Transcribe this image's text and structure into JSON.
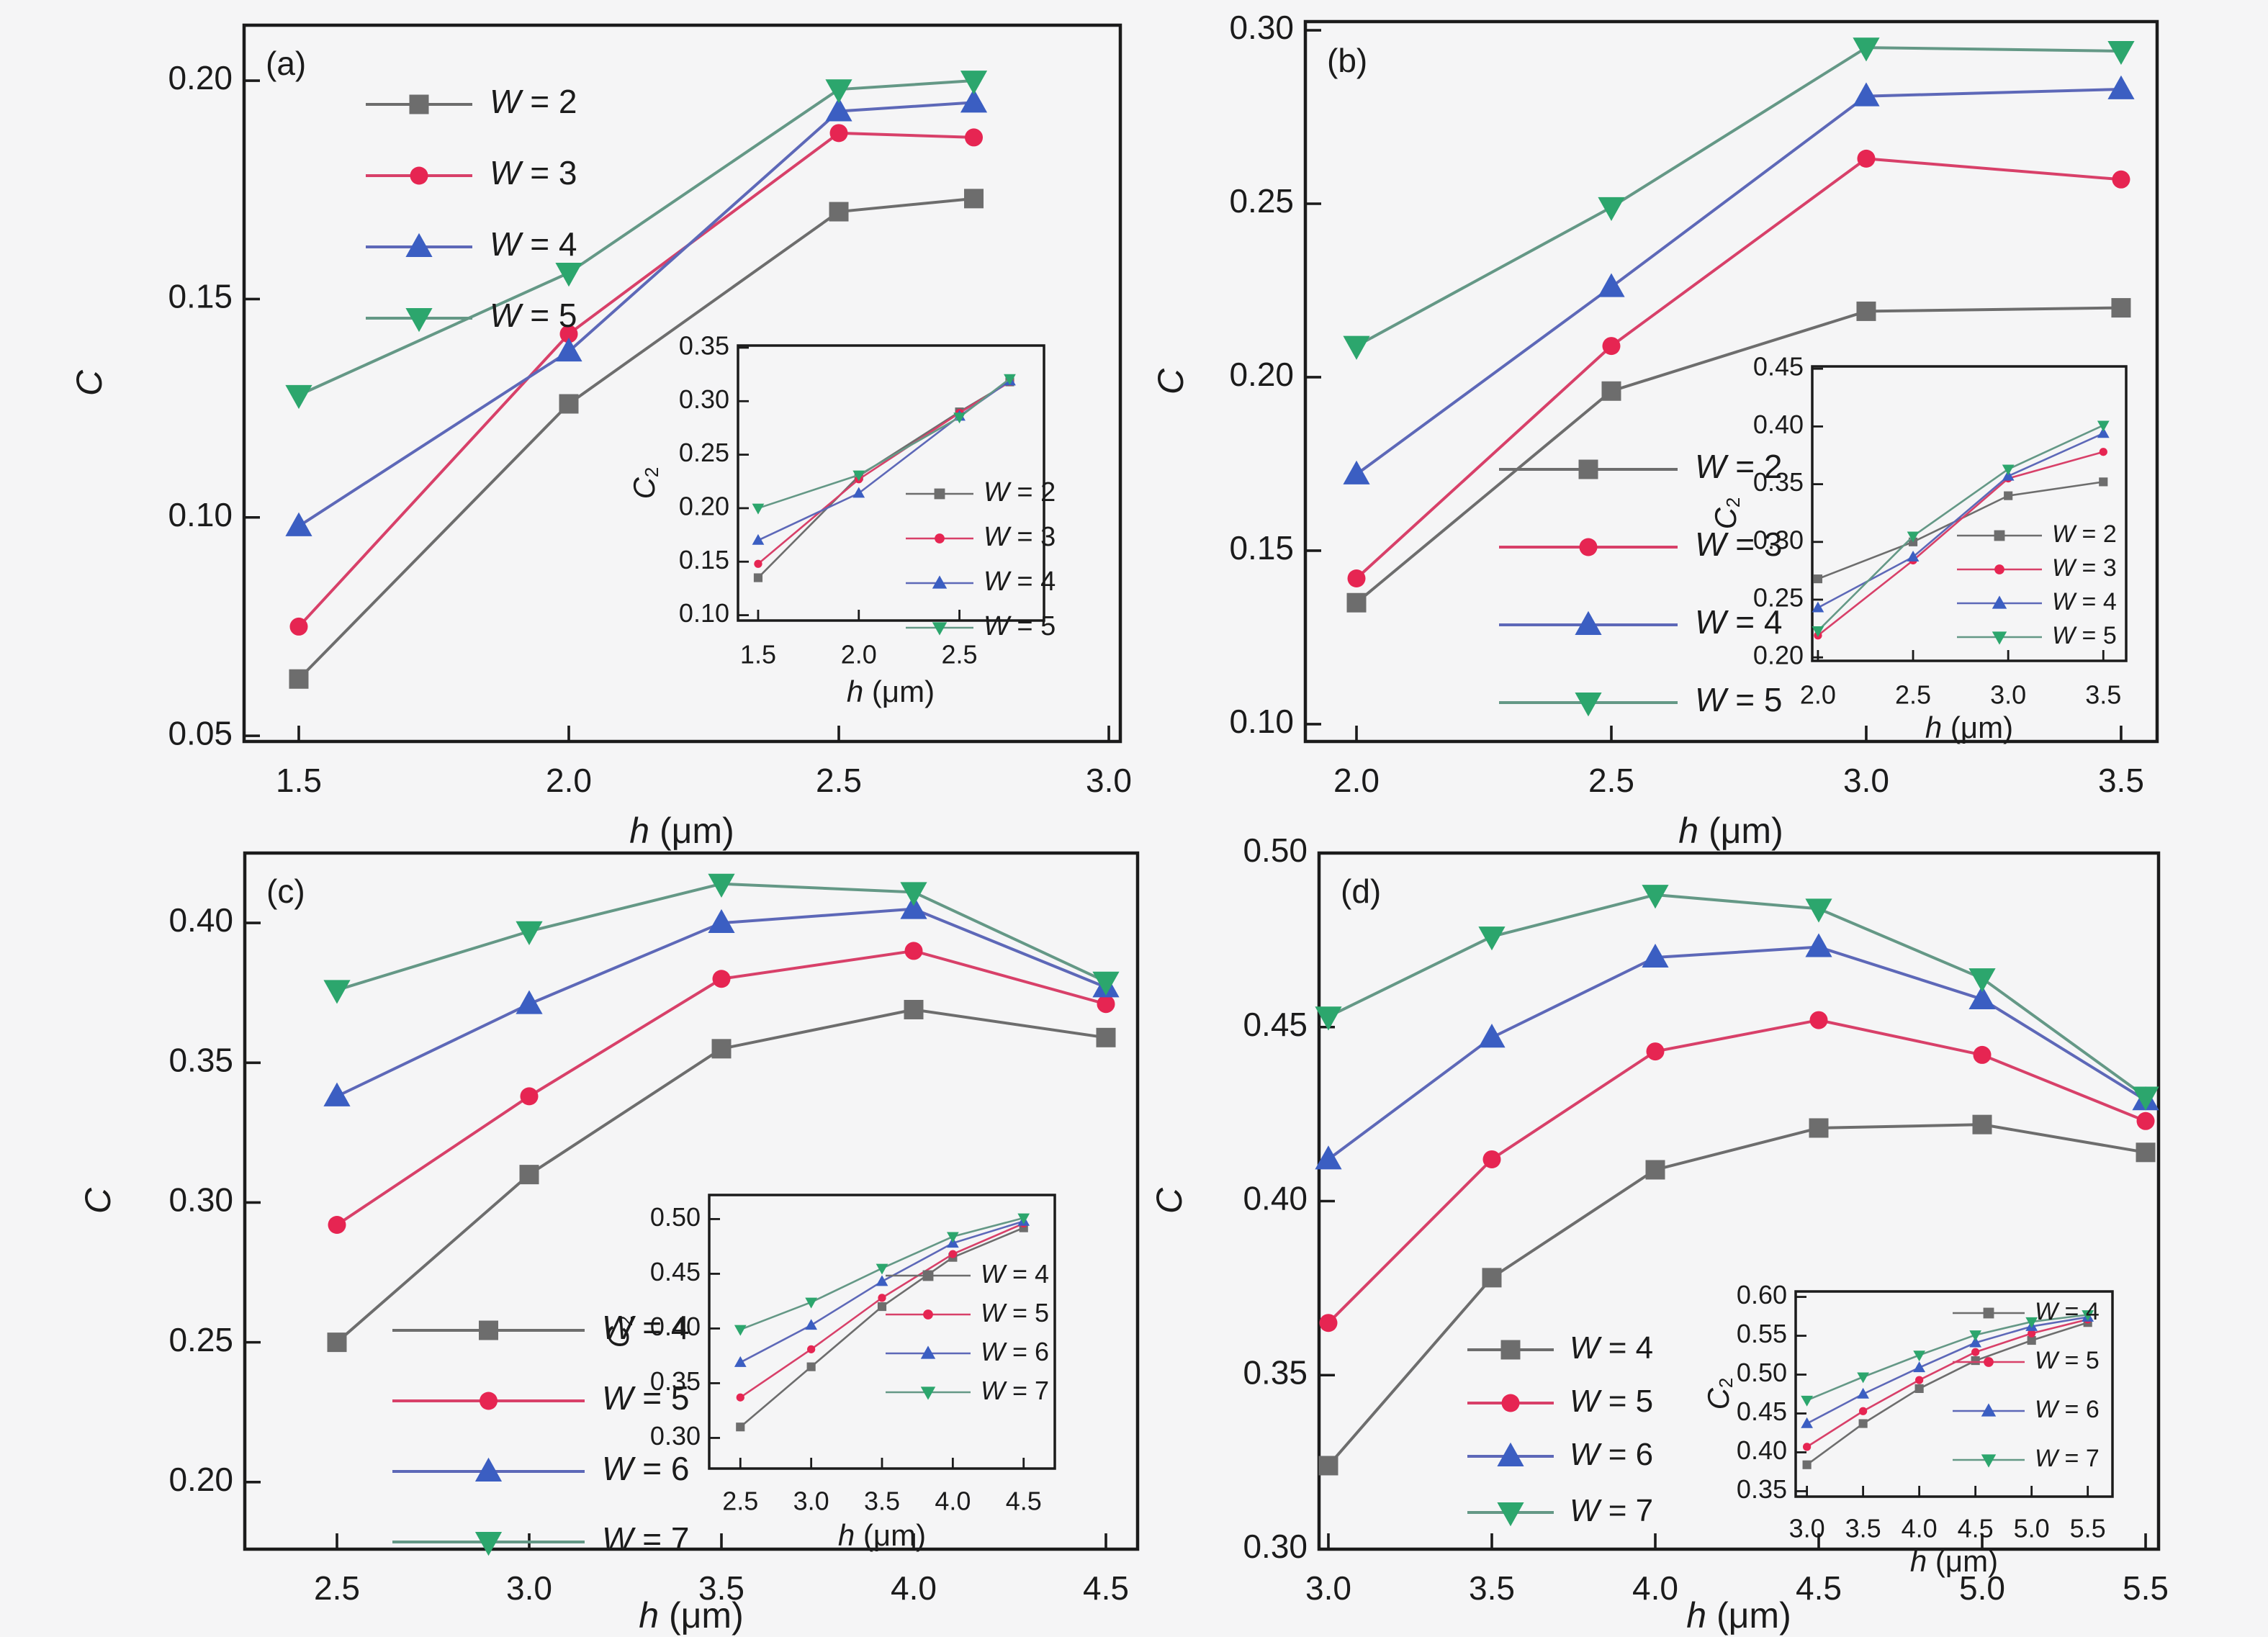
{
  "figure": {
    "background": "#f5f5f6",
    "text_color": "#1b1b1b",
    "frame_color": "#1b1b1b",
    "series_colors": {
      "gray": "#6d6d6d",
      "red_marker": "#e62552",
      "red_line": "#d84069",
      "blue_marker": "#3b5ec2",
      "blue_line": "#5d68b8",
      "green_marker": "#2ca66d",
      "green_line": "#649886"
    }
  },
  "chart_data": [
    {
      "id": "a",
      "panel_label": "(a)",
      "type": "line",
      "xlabel": "h (μm)",
      "ylabel": "C",
      "xlim": [
        1.3987,
        3.0213
      ],
      "ylim": [
        0.0487,
        0.2127
      ],
      "xticks": [
        1.5,
        2.0,
        2.5,
        3.0
      ],
      "yticks": [
        0.05,
        0.1,
        0.15,
        0.2
      ],
      "legend_position": "top-left",
      "x": [
        1.5,
        2.0,
        2.5,
        2.75
      ],
      "series": [
        {
          "name": "W = 2",
          "marker": "square",
          "color": "#6d6d6d",
          "line_color": "#6d6d6d",
          "values": [
            0.063,
            0.126,
            0.17,
            0.173
          ]
        },
        {
          "name": "W = 3",
          "marker": "circle",
          "color": "#e62552",
          "line_color": "#d84069",
          "values": [
            0.075,
            0.142,
            0.188,
            0.187
          ]
        },
        {
          "name": "W = 4",
          "marker": "triangle-up",
          "color": "#3b5ec2",
          "line_color": "#5d68b8",
          "values": [
            0.098,
            0.138,
            0.193,
            0.195
          ]
        },
        {
          "name": "W = 5",
          "marker": "triangle-down",
          "color": "#2ca66d",
          "line_color": "#649886",
          "values": [
            0.128,
            0.156,
            0.198,
            0.2
          ]
        }
      ],
      "inset": {
        "xlabel": "h (μm)",
        "ylabel": "C₂",
        "xlim": [
          1.4,
          2.92
        ],
        "ylim": [
          0.095,
          0.352
        ],
        "xticks": [
          1.5,
          2.0,
          2.5
        ],
        "yticks": [
          0.1,
          0.15,
          0.2,
          0.25,
          0.3,
          0.35
        ],
        "legend_position": "right",
        "x": [
          1.5,
          2.0,
          2.5,
          2.75
        ],
        "series": [
          {
            "name": "W = 2",
            "marker": "square",
            "color": "#6d6d6d",
            "line_color": "#6d6d6d",
            "values": [
              0.135,
              0.23,
              0.29,
              0.318
            ]
          },
          {
            "name": "W = 3",
            "marker": "circle",
            "color": "#e62552",
            "line_color": "#d84069",
            "values": [
              0.148,
              0.227,
              0.289,
              0.318
            ]
          },
          {
            "name": "W = 4",
            "marker": "triangle-up",
            "color": "#3b5ec2",
            "line_color": "#5d68b8",
            "values": [
              0.17,
              0.214,
              0.286,
              0.319
            ]
          },
          {
            "name": "W = 5",
            "marker": "triangle-down",
            "color": "#2ca66d",
            "line_color": "#649886",
            "values": [
              0.2,
              0.231,
              0.285,
              0.321
            ]
          }
        ]
      }
    },
    {
      "id": "b",
      "panel_label": "(b)",
      "type": "line",
      "xlabel": "h (μm)",
      "ylabel": "C",
      "xlim": [
        1.8997,
        3.5707
      ],
      "ylim": [
        0.095,
        0.3025
      ],
      "xticks": [
        2.0,
        2.5,
        3.0,
        3.5
      ],
      "yticks": [
        0.1,
        0.15,
        0.2,
        0.25,
        0.3
      ],
      "legend_position": "bottom-left",
      "x": [
        2.0,
        2.5,
        3.0,
        3.5
      ],
      "series": [
        {
          "name": "W = 2",
          "marker": "square",
          "color": "#6d6d6d",
          "line_color": "#6d6d6d",
          "values": [
            0.135,
            0.196,
            0.219,
            0.22
          ]
        },
        {
          "name": "W = 3",
          "marker": "circle",
          "color": "#e62552",
          "line_color": "#d84069",
          "values": [
            0.142,
            0.209,
            0.263,
            0.257
          ]
        },
        {
          "name": "W = 4",
          "marker": "triangle-up",
          "color": "#3b5ec2",
          "line_color": "#5d68b8",
          "values": [
            0.172,
            0.226,
            0.281,
            0.283
          ]
        },
        {
          "name": "W = 5",
          "marker": "triangle-down",
          "color": "#2ca66d",
          "line_color": "#649886",
          "values": [
            0.209,
            0.249,
            0.295,
            0.294
          ]
        }
      ],
      "inset": {
        "xlabel": "h (μm)",
        "ylabel": "C₂",
        "xlim": [
          1.97,
          3.62
        ],
        "ylim": [
          0.197,
          0.452
        ],
        "xticks": [
          2.0,
          2.5,
          3.0,
          3.5
        ],
        "yticks": [
          0.2,
          0.25,
          0.3,
          0.35,
          0.4,
          0.45
        ],
        "legend_position": "right",
        "x": [
          2.0,
          2.5,
          3.0,
          3.5
        ],
        "series": [
          {
            "name": "W = 2",
            "marker": "square",
            "color": "#6d6d6d",
            "line_color": "#6d6d6d",
            "values": [
              0.268,
              0.3,
              0.34,
              0.352
            ]
          },
          {
            "name": "W = 3",
            "marker": "circle",
            "color": "#e62552",
            "line_color": "#d84069",
            "values": [
              0.219,
              0.284,
              0.355,
              0.378
            ]
          },
          {
            "name": "W = 4",
            "marker": "triangle-up",
            "color": "#3b5ec2",
            "line_color": "#5d68b8",
            "values": [
              0.243,
              0.287,
              0.357,
              0.394
            ]
          },
          {
            "name": "W = 5",
            "marker": "triangle-down",
            "color": "#2ca66d",
            "line_color": "#649886",
            "values": [
              0.223,
              0.305,
              0.363,
              0.401
            ]
          }
        ]
      }
    },
    {
      "id": "c",
      "panel_label": "(c)",
      "type": "line",
      "xlabel": "h (μm)",
      "ylabel": "C",
      "xlim": [
        2.2603,
        4.5824
      ],
      "ylim": [
        0.176,
        0.425
      ],
      "xticks": [
        2.5,
        3.0,
        3.5,
        4.0,
        4.5
      ],
      "yticks": [
        0.2,
        0.25,
        0.3,
        0.35,
        0.4
      ],
      "legend_position": "bottom-left",
      "x": [
        2.5,
        3.0,
        3.5,
        4.0,
        4.5
      ],
      "series": [
        {
          "name": "W = 4",
          "marker": "square",
          "color": "#6d6d6d",
          "line_color": "#6d6d6d",
          "values": [
            0.25,
            0.31,
            0.355,
            0.369,
            0.359
          ]
        },
        {
          "name": "W = 5",
          "marker": "circle",
          "color": "#e62552",
          "line_color": "#d84069",
          "values": [
            0.292,
            0.338,
            0.38,
            0.39,
            0.371
          ]
        },
        {
          "name": "W = 6",
          "marker": "triangle-up",
          "color": "#3b5ec2",
          "line_color": "#5d68b8",
          "values": [
            0.338,
            0.371,
            0.4,
            0.405,
            0.377
          ]
        },
        {
          "name": "W = 7",
          "marker": "triangle-down",
          "color": "#2ca66d",
          "line_color": "#649886",
          "values": [
            0.376,
            0.397,
            0.414,
            0.411,
            0.379
          ]
        }
      ],
      "inset": {
        "xlabel": "h (μm)",
        "ylabel": "C₂",
        "xlim": [
          2.28,
          4.72
        ],
        "ylim": [
          0.272,
          0.522
        ],
        "xticks": [
          2.5,
          3.0,
          3.5,
          4.0,
          4.5
        ],
        "yticks": [
          0.3,
          0.35,
          0.4,
          0.45,
          0.5
        ],
        "legend_position": "right",
        "x": [
          2.5,
          3.0,
          3.5,
          4.0,
          4.5
        ],
        "series": [
          {
            "name": "W = 4",
            "marker": "square",
            "color": "#6d6d6d",
            "line_color": "#6d6d6d",
            "values": [
              0.31,
              0.365,
              0.42,
              0.465,
              0.492
            ]
          },
          {
            "name": "W = 5",
            "marker": "circle",
            "color": "#e62552",
            "line_color": "#d84069",
            "values": [
              0.337,
              0.381,
              0.428,
              0.468,
              0.496
            ]
          },
          {
            "name": "W = 6",
            "marker": "triangle-up",
            "color": "#3b5ec2",
            "line_color": "#5d68b8",
            "values": [
              0.369,
              0.403,
              0.443,
              0.478,
              0.498
            ]
          },
          {
            "name": "W = 7",
            "marker": "triangle-down",
            "color": "#2ca66d",
            "line_color": "#649886",
            "values": [
              0.399,
              0.424,
              0.455,
              0.484,
              0.501
            ]
          }
        ]
      }
    },
    {
      "id": "d",
      "panel_label": "(d)",
      "type": "line",
      "xlabel": "h (μm)",
      "ylabel": "C",
      "xlim": [
        2.9714,
        5.5396
      ],
      "ylim": [
        0.3,
        0.5
      ],
      "xticks": [
        3.0,
        3.5,
        4.0,
        4.5,
        5.0,
        5.5
      ],
      "yticks": [
        0.3,
        0.35,
        0.4,
        0.45,
        0.5
      ],
      "legend_position": "bottom-left",
      "x": [
        3.0,
        3.5,
        4.0,
        4.5,
        5.0,
        5.5
      ],
      "series": [
        {
          "name": "W = 4",
          "marker": "square",
          "color": "#6d6d6d",
          "line_color": "#6d6d6d",
          "values": [
            0.324,
            0.378,
            0.409,
            0.421,
            0.422,
            0.414
          ]
        },
        {
          "name": "W = 5",
          "marker": "circle",
          "color": "#e62552",
          "line_color": "#d84069",
          "values": [
            0.365,
            0.412,
            0.443,
            0.452,
            0.442,
            0.423
          ]
        },
        {
          "name": "W = 6",
          "marker": "triangle-up",
          "color": "#3b5ec2",
          "line_color": "#5d68b8",
          "values": [
            0.412,
            0.447,
            0.47,
            0.473,
            0.458,
            0.429
          ]
        },
        {
          "name": "W = 7",
          "marker": "triangle-down",
          "color": "#2ca66d",
          "line_color": "#649886",
          "values": [
            0.453,
            0.476,
            0.488,
            0.484,
            0.464,
            0.43
          ]
        }
      ],
      "inset": {
        "xlabel": "h (μm)",
        "ylabel": "C₂",
        "xlim": [
          2.9,
          5.72
        ],
        "ylim": [
          0.343,
          0.607
        ],
        "xticks": [
          3.0,
          3.5,
          4.0,
          4.5,
          5.0,
          5.5
        ],
        "yticks": [
          0.35,
          0.4,
          0.45,
          0.5,
          0.55,
          0.6
        ],
        "legend_position": "right",
        "x": [
          3.0,
          3.5,
          4.0,
          4.5,
          5.0,
          5.5
        ],
        "series": [
          {
            "name": "W = 4",
            "marker": "square",
            "color": "#6d6d6d",
            "line_color": "#6d6d6d",
            "values": [
              0.384,
              0.437,
              0.482,
              0.518,
              0.544,
              0.567
            ]
          },
          {
            "name": "W = 5",
            "marker": "circle",
            "color": "#e62552",
            "line_color": "#d84069",
            "values": [
              0.407,
              0.453,
              0.493,
              0.529,
              0.553,
              0.571
            ]
          },
          {
            "name": "W = 6",
            "marker": "triangle-up",
            "color": "#3b5ec2",
            "line_color": "#5d68b8",
            "values": [
              0.437,
              0.475,
              0.509,
              0.541,
              0.562,
              0.574
            ]
          },
          {
            "name": "W = 7",
            "marker": "triangle-down",
            "color": "#2ca66d",
            "line_color": "#649886",
            "values": [
              0.467,
              0.497,
              0.525,
              0.551,
              0.568,
              0.577
            ]
          }
        ]
      }
    }
  ]
}
